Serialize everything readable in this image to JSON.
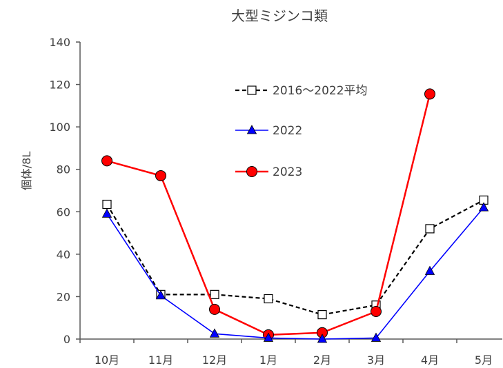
{
  "chart_data": {
    "type": "line",
    "title": "大型ミジンコ類",
    "xlabel": "",
    "ylabel": "個体/8L",
    "categories": [
      "10月",
      "11月",
      "12月",
      "1月",
      "2月",
      "3月",
      "4月",
      "5月"
    ],
    "ylim": [
      0,
      140
    ],
    "yticks": [
      0,
      20,
      40,
      60,
      80,
      100,
      120,
      140
    ],
    "grid": false,
    "legend_position": "top-center",
    "series": [
      {
        "name": "2016～2022平均",
        "values": [
          63.5,
          21,
          21,
          19,
          11.5,
          16,
          52,
          65.5
        ],
        "color": "#000000",
        "line_style": "dashed",
        "marker": "square-open"
      },
      {
        "name": "2022",
        "values": [
          59,
          20.5,
          2.5,
          0.5,
          0,
          0.5,
          32,
          62
        ],
        "color": "#0000ff",
        "line_style": "solid",
        "marker": "triangle"
      },
      {
        "name": "2023",
        "values": [
          84,
          77,
          14,
          2,
          3,
          13,
          115.5,
          null
        ],
        "color": "#ff0000",
        "line_style": "solid",
        "marker": "circle"
      }
    ]
  }
}
